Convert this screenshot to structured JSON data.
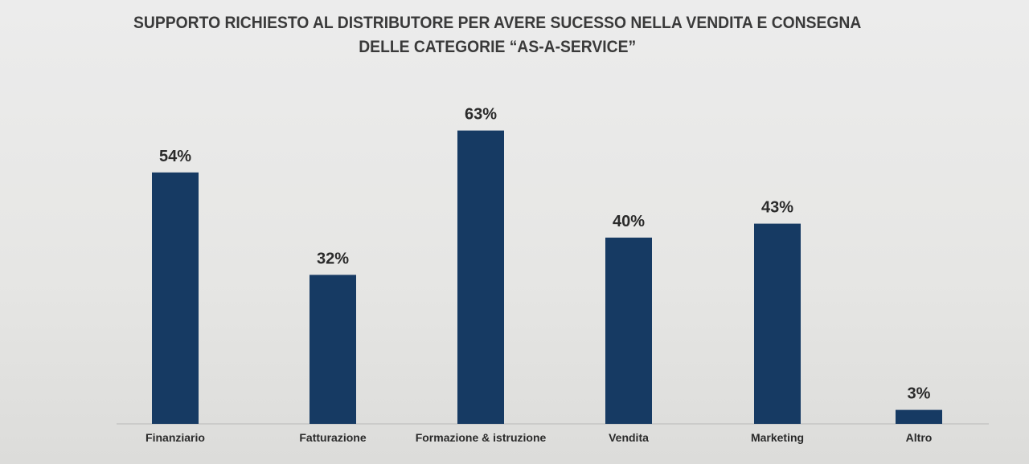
{
  "chart_data": {
    "type": "bar",
    "title": "SUPPORTO RICHIESTO AL DISTRIBUTORE PER AVERE SUCESSO NELLA VENDITA E CONSEGNA DELLE CATEGORIE “AS-A-SERVICE”",
    "title_lines": [
      "SUPPORTO RICHIESTO AL DISTRIBUTORE PER AVERE SUCESSO NELLA VENDITA E CONSEGNA",
      "DELLE CATEGORIE “AS-A-SERVICE”"
    ],
    "categories": [
      "Finanziario",
      "Fatturazione",
      "Formazione & istruzione",
      "Vendita",
      "Marketing",
      "Altro"
    ],
    "values": [
      54,
      32,
      63,
      40,
      43,
      3
    ],
    "data_labels": [
      "54%",
      "32%",
      "63%",
      "40%",
      "43%",
      "3%"
    ],
    "unit": "%",
    "ylim": [
      0,
      70
    ],
    "grid": false,
    "bar_color": "#163a63"
  }
}
